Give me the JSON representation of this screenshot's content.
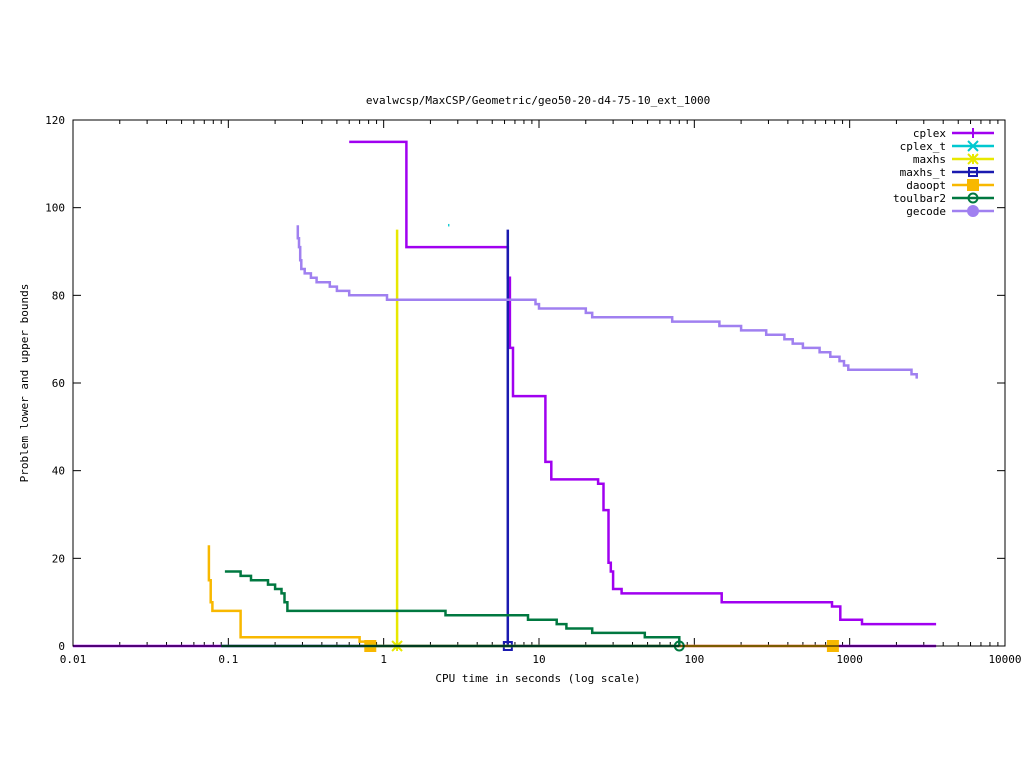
{
  "chart_data": {
    "type": "line",
    "title": "evalwcsp/MaxCSP/Geometric/geo50-20-d4-75-10_ext_1000",
    "xlabel": "CPU time in seconds (log scale)",
    "ylabel": "Problem lower and upper bounds",
    "x_scale": "log",
    "xlim": [
      0.01,
      10000
    ],
    "ylim": [
      0,
      120
    ],
    "x_ticks": [
      0.01,
      0.1,
      1,
      10,
      100,
      1000,
      10000
    ],
    "x_tick_labels": [
      "0.01",
      "0.1",
      "1",
      "10",
      "100",
      "1000",
      "10000"
    ],
    "y_ticks": [
      0,
      20,
      40,
      60,
      80,
      100,
      120
    ],
    "y_tick_labels": [
      "0",
      "20",
      "40",
      "60",
      "80",
      "100",
      "120"
    ],
    "grid": false,
    "legend_position": "top-right",
    "series": [
      {
        "name": "cplex",
        "color": "#a000f0",
        "marker": "plus",
        "lines": [
          [
            [
              0.6,
              115
            ],
            [
              1.4,
              115
            ],
            [
              1.4,
              91
            ],
            [
              6.3,
              91
            ],
            [
              6.3,
              84
            ],
            [
              6.5,
              84
            ],
            [
              6.5,
              68
            ],
            [
              6.8,
              68
            ],
            [
              6.8,
              57
            ],
            [
              11,
              57
            ],
            [
              11,
              42
            ],
            [
              12,
              42
            ],
            [
              12,
              38
            ],
            [
              24,
              38
            ],
            [
              24,
              37
            ],
            [
              26,
              37
            ],
            [
              26,
              31
            ],
            [
              28,
              31
            ],
            [
              28,
              19
            ],
            [
              29,
              19
            ],
            [
              29,
              17
            ],
            [
              30,
              17
            ],
            [
              30,
              13
            ],
            [
              34,
              13
            ],
            [
              34,
              12
            ],
            [
              150,
              12
            ],
            [
              150,
              10
            ],
            [
              770,
              10
            ],
            [
              770,
              9
            ],
            [
              870,
              9
            ],
            [
              870,
              6
            ],
            [
              1200,
              6
            ],
            [
              1200,
              5
            ],
            [
              3600,
              5
            ]
          ],
          [
            [
              0.01,
              0
            ],
            [
              3600,
              0
            ]
          ]
        ],
        "markers": []
      },
      {
        "name": "cplex_t",
        "color": "#00c8d0",
        "marker": "cross",
        "lines": [
          [
            [
              2.6,
              96
            ],
            [
              2.65,
              96
            ]
          ]
        ],
        "markers": []
      },
      {
        "name": "maxhs",
        "color": "#e8e800",
        "marker": "star",
        "lines": [
          [
            [
              1.22,
              95
            ],
            [
              1.22,
              0
            ]
          ]
        ],
        "markers": [
          [
            1.22,
            0
          ]
        ]
      },
      {
        "name": "maxhs_t",
        "color": "#1a1ab0",
        "marker": "box",
        "lines": [
          [
            [
              6.3,
              95
            ],
            [
              6.3,
              0
            ]
          ]
        ],
        "markers": [
          [
            6.3,
            0
          ]
        ]
      },
      {
        "name": "daoopt",
        "color": "#f8b800",
        "marker": "filled-box",
        "lines": [
          [
            [
              0.075,
              23
            ],
            [
              0.075,
              15
            ],
            [
              0.077,
              15
            ],
            [
              0.077,
              10
            ],
            [
              0.079,
              10
            ],
            [
              0.079,
              8
            ],
            [
              0.12,
              8
            ],
            [
              0.12,
              2
            ],
            [
              0.7,
              2
            ],
            [
              0.7,
              1
            ],
            [
              0.8,
              1
            ],
            [
              0.8,
              0
            ],
            [
              780,
              0
            ]
          ]
        ],
        "markers": [
          [
            0.82,
            0
          ],
          [
            780,
            0
          ]
        ]
      },
      {
        "name": "toulbar2",
        "color": "#007840",
        "marker": "circle",
        "lines": [
          [
            [
              0.095,
              17
            ],
            [
              0.12,
              17
            ],
            [
              0.12,
              16
            ],
            [
              0.14,
              16
            ],
            [
              0.14,
              15
            ],
            [
              0.18,
              15
            ],
            [
              0.18,
              14
            ],
            [
              0.2,
              14
            ],
            [
              0.2,
              13
            ],
            [
              0.22,
              13
            ],
            [
              0.22,
              12
            ],
            [
              0.23,
              12
            ],
            [
              0.23,
              10
            ],
            [
              0.24,
              10
            ],
            [
              0.24,
              8
            ],
            [
              2.5,
              8
            ],
            [
              2.5,
              7
            ],
            [
              8.5,
              7
            ],
            [
              8.5,
              6
            ],
            [
              13,
              6
            ],
            [
              13,
              5
            ],
            [
              15,
              5
            ],
            [
              15,
              4
            ],
            [
              22,
              4
            ],
            [
              22,
              3
            ],
            [
              48,
              3
            ],
            [
              48,
              2
            ],
            [
              80,
              2
            ],
            [
              80,
              0
            ]
          ],
          [
            [
              0.09,
              0
            ],
            [
              80,
              0
            ]
          ]
        ],
        "markers": [
          [
            80,
            0
          ]
        ]
      },
      {
        "name": "gecode",
        "color": "#a080f0",
        "marker": "filled-circle",
        "lines": [
          [
            [
              0.28,
              96
            ],
            [
              0.28,
              93
            ],
            [
              0.285,
              93
            ],
            [
              0.285,
              91
            ],
            [
              0.29,
              91
            ],
            [
              0.29,
              88
            ],
            [
              0.295,
              88
            ],
            [
              0.295,
              86
            ],
            [
              0.31,
              86
            ],
            [
              0.31,
              85
            ],
            [
              0.34,
              85
            ],
            [
              0.34,
              84
            ],
            [
              0.37,
              84
            ],
            [
              0.37,
              83
            ],
            [
              0.45,
              83
            ],
            [
              0.45,
              82
            ],
            [
              0.5,
              82
            ],
            [
              0.5,
              81
            ],
            [
              0.6,
              81
            ],
            [
              0.6,
              80
            ],
            [
              1.05,
              80
            ],
            [
              1.05,
              79
            ],
            [
              9.5,
              79
            ],
            [
              9.5,
              78
            ],
            [
              10,
              78
            ],
            [
              10,
              77
            ],
            [
              20,
              77
            ],
            [
              20,
              76
            ],
            [
              22,
              76
            ],
            [
              22,
              75
            ],
            [
              72,
              75
            ],
            [
              72,
              74
            ],
            [
              145,
              74
            ],
            [
              145,
              73
            ],
            [
              200,
              73
            ],
            [
              200,
              72
            ],
            [
              290,
              72
            ],
            [
              290,
              71
            ],
            [
              380,
              71
            ],
            [
              380,
              70
            ],
            [
              430,
              70
            ],
            [
              430,
              69
            ],
            [
              500,
              69
            ],
            [
              500,
              68
            ],
            [
              640,
              68
            ],
            [
              640,
              67
            ],
            [
              750,
              67
            ],
            [
              750,
              66
            ],
            [
              860,
              66
            ],
            [
              860,
              65
            ],
            [
              920,
              65
            ],
            [
              920,
              64
            ],
            [
              980,
              64
            ],
            [
              980,
              63
            ],
            [
              2500,
              63
            ],
            [
              2500,
              62
            ],
            [
              2700,
              62
            ],
            [
              2700,
              61
            ]
          ]
        ],
        "markers": []
      }
    ]
  }
}
